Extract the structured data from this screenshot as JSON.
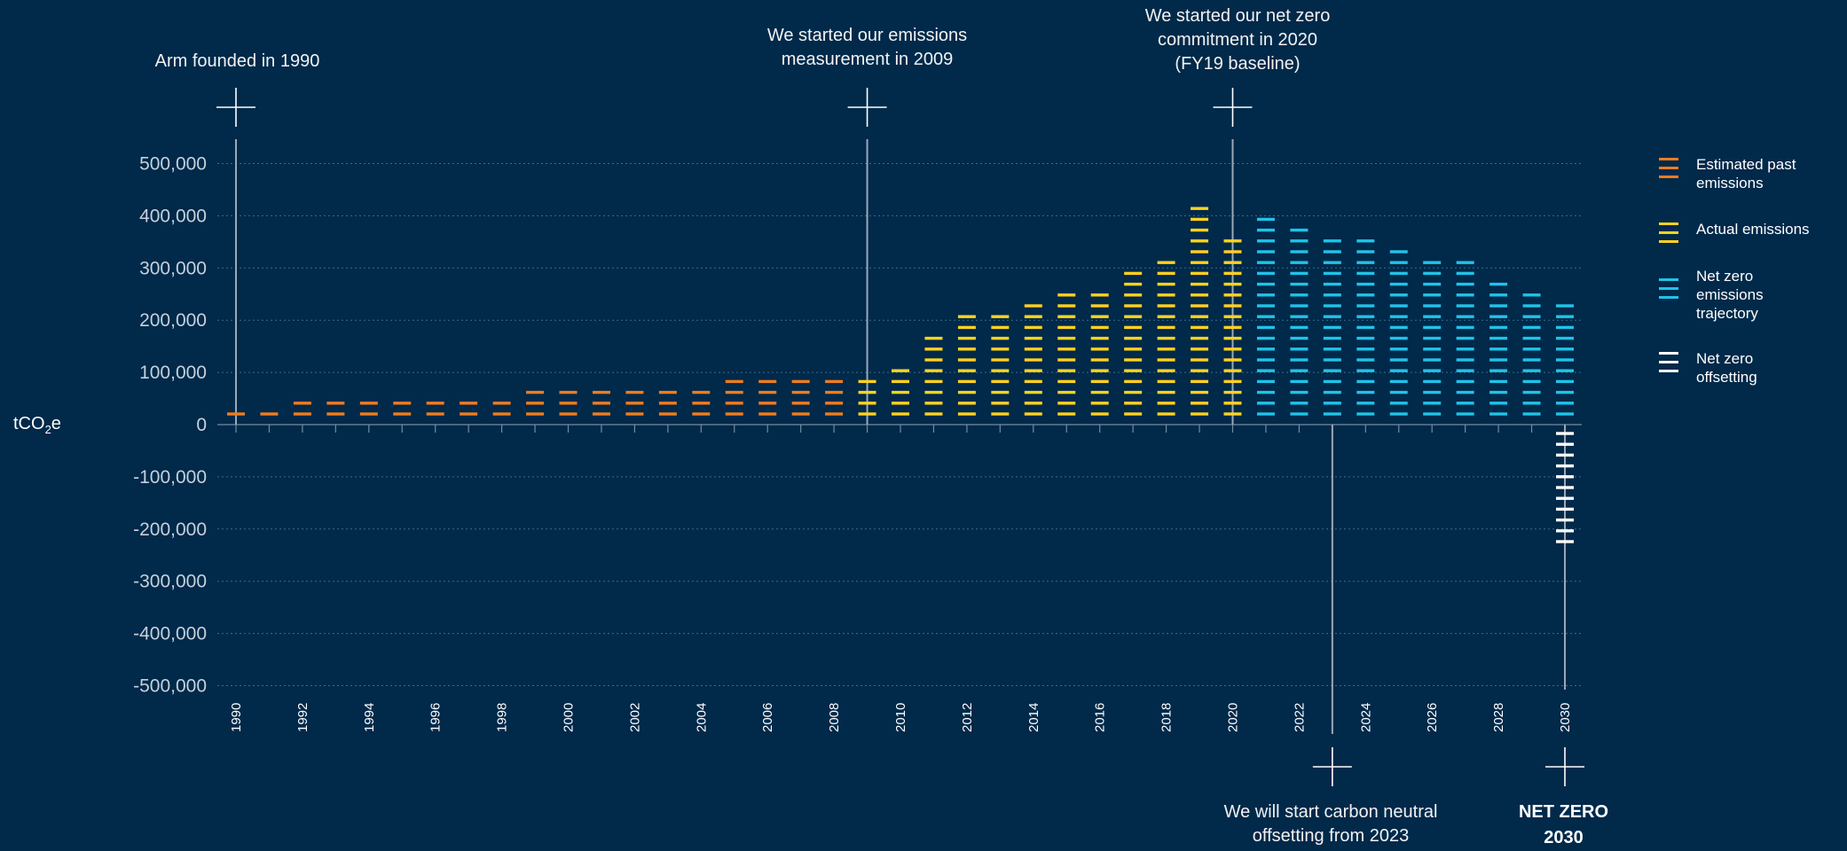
{
  "colors": {
    "background": "#00294a",
    "estimated_past": "#f07c1e",
    "actual": "#ffd21f",
    "trajectory": "#20c3e8",
    "offsetting": "#ffffff",
    "gridline": "#3b6d8a",
    "axis_text": "#c5d1db"
  },
  "y_axis_unit": {
    "prefix": "tCO",
    "sub": "2",
    "suffix": "e"
  },
  "annotations": {
    "founded": "Arm founded in 1990",
    "measurement": [
      "We started our emissions",
      "measurement in 2009"
    ],
    "netzero_commit": [
      "We started our net zero",
      "commitment in 2020",
      "(FY19 baseline)"
    ],
    "offsetting": [
      "We will start carbon neutral",
      "offsetting from 2023"
    ],
    "netzero_2030": [
      "NET ZERO",
      "2030"
    ]
  },
  "legend": [
    {
      "label": "Estimated past emissions",
      "color": "#f07c1e",
      "icon": "orange-dash-icon"
    },
    {
      "label": "Actual emissions",
      "color": "#ffd21f",
      "icon": "yellow-dash-icon"
    },
    {
      "label": "Net zero emissions trajectory",
      "color": "#20c3e8",
      "icon": "blue-dash-icon"
    },
    {
      "label": "Net zero offsetting",
      "color": "#ffffff",
      "icon": "white-dash-icon"
    }
  ],
  "chart_data": {
    "type": "bar",
    "title": "",
    "ylabel": "tCO2e",
    "xlabel": "",
    "ylim": [
      -500000,
      500000
    ],
    "yticks": [
      "500,000",
      "400,000",
      "300,000",
      "200,000",
      "100,000",
      "0",
      "-100,000",
      "-200,000",
      "-300,000",
      "-400,000",
      "-500,000"
    ],
    "ytick_values": [
      500000,
      400000,
      300000,
      200000,
      100000,
      0,
      -100000,
      -200000,
      -300000,
      -400000,
      -500000
    ],
    "x_labels": [
      "1990",
      "1992",
      "1994",
      "1996",
      "1998",
      "2000",
      "2002",
      "2004",
      "2006",
      "2008",
      "2010",
      "2012",
      "2014",
      "2016",
      "2018",
      "2020",
      "2022",
      "2024",
      "2026",
      "2028",
      "2030"
    ],
    "grid": true,
    "legend_position": "right",
    "series": [
      {
        "name": "Estimated past emissions",
        "color": "#f07c1e",
        "x": [
          1990,
          1991,
          1992,
          1993,
          1994,
          1995,
          1996,
          1997,
          1998,
          1999,
          2000,
          2001,
          2002,
          2003,
          2004,
          2005,
          2006,
          2007,
          2008
        ],
        "values": [
          30000,
          35000,
          40000,
          45000,
          45000,
          52000,
          58000,
          57000,
          58000,
          61000,
          65000,
          68000,
          70000,
          75000,
          80000,
          82000,
          85000,
          90000,
          93000
        ]
      },
      {
        "name": "Actual emissions",
        "color": "#ffd21f",
        "x": [
          2009,
          2010,
          2011,
          2012,
          2013,
          2014,
          2015,
          2016,
          2017,
          2018,
          2019,
          2020
        ],
        "values": [
          100000,
          115000,
          172000,
          212000,
          222000,
          237000,
          248000,
          262000,
          288000,
          313000,
          423000,
          364000
        ]
      },
      {
        "name": "Net zero emissions trajectory",
        "color": "#20c3e8",
        "x": [
          2021,
          2022,
          2023,
          2024,
          2025,
          2026,
          2027,
          2028,
          2029,
          2030
        ],
        "values": [
          392000,
          375000,
          366000,
          356000,
          340000,
          328000,
          312000,
          275000,
          260000,
          242000
        ]
      },
      {
        "name": "Net zero offsetting",
        "color": "#ffffff",
        "x": [
          2030
        ],
        "values": [
          -242000
        ]
      }
    ],
    "milestones": [
      1990,
      2009,
      2020,
      2023,
      2030
    ]
  }
}
